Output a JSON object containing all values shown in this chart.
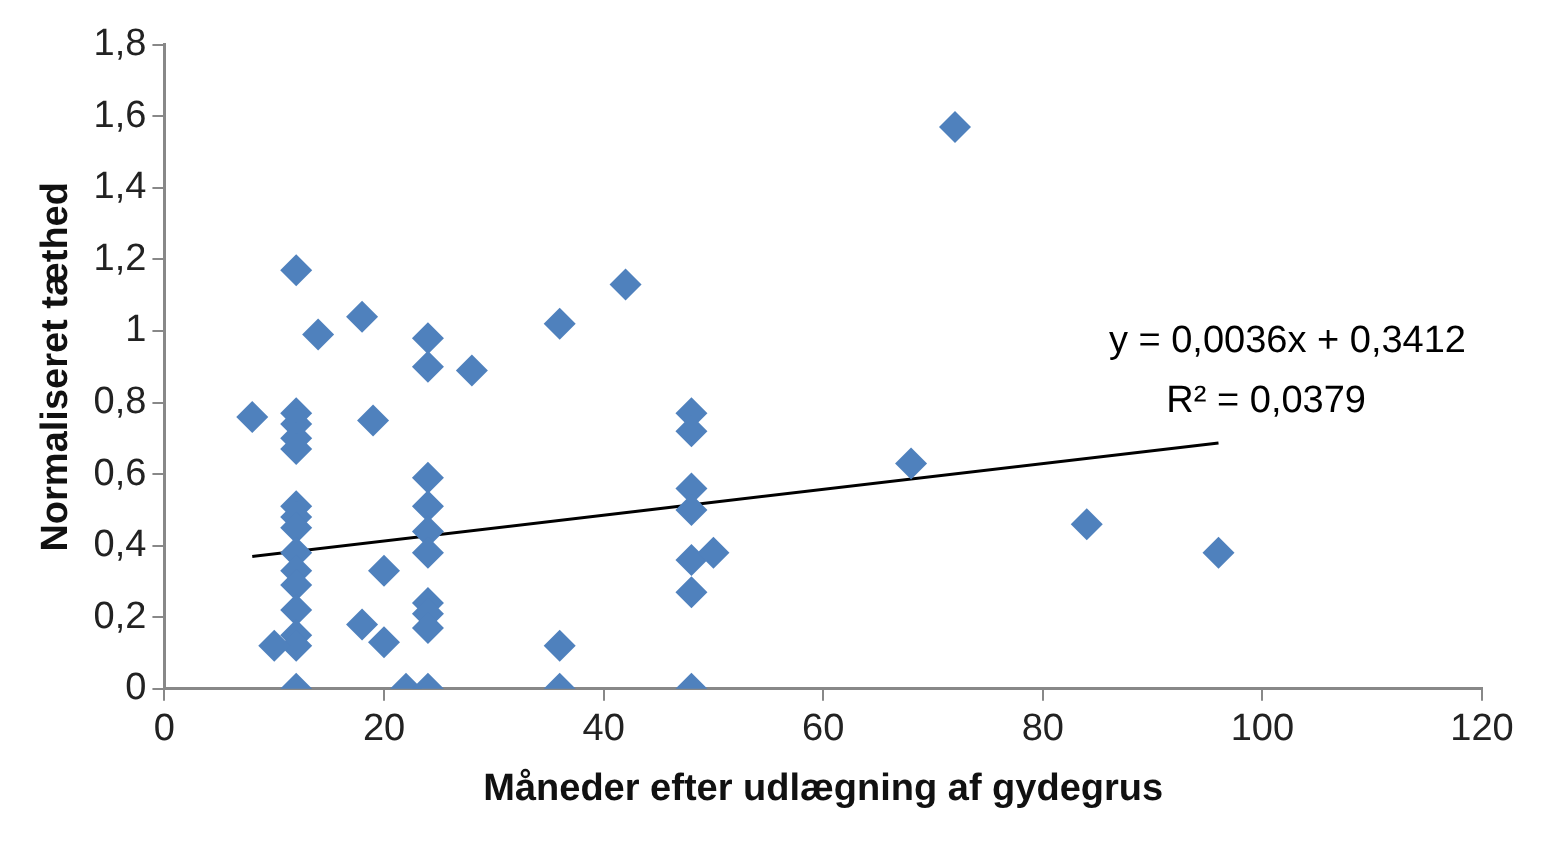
{
  "chart_data": {
    "type": "scatter",
    "xlabel": "Måneder efter udlægning af gydegrus",
    "ylabel": "Normaliseret tæthed",
    "marker": "diamond",
    "grid": false,
    "legend": false,
    "xlim": [
      0,
      120
    ],
    "xticks": [
      0,
      20,
      40,
      60,
      80,
      100,
      120
    ],
    "ylim": [
      0,
      1.8
    ],
    "yticks": [
      0,
      {
        "value": 0.2,
        "label": "0,2"
      },
      {
        "value": 0.4,
        "label": "0,4"
      },
      {
        "value": 0.6,
        "label": "0,6"
      },
      {
        "value": 0.8,
        "label": "0,8"
      },
      1,
      {
        "value": 1.2,
        "label": "1,2"
      },
      {
        "value": 1.4,
        "label": "1,4"
      },
      {
        "value": 1.6,
        "label": "1,6"
      },
      {
        "value": 1.8,
        "label": "1,8"
      }
    ],
    "annotations": [
      "y = 0,0036x + 0,3412",
      "R² = 0,0379"
    ],
    "series": [
      {
        "color": "#4f81bd",
        "x": [
          12,
          12,
          12,
          12,
          12,
          12,
          12,
          12,
          12,
          12,
          12,
          12,
          12,
          12,
          12,
          8,
          10,
          14,
          18,
          18,
          19,
          20,
          20,
          22,
          24,
          24,
          24,
          24,
          24,
          24,
          24,
          24,
          24,
          24,
          28,
          36,
          36,
          36,
          42,
          48,
          48,
          48,
          48,
          48,
          48,
          48,
          50,
          68,
          72,
          84,
          96
        ],
        "values": [
          1.17,
          0.77,
          0.74,
          0.7,
          0.67,
          0.51,
          0.48,
          0.45,
          0.38,
          0.33,
          0.29,
          0.22,
          0.15,
          0.12,
          0,
          0.76,
          0.12,
          0.99,
          1.04,
          0.18,
          0.75,
          0.33,
          0.13,
          0,
          0.98,
          0.9,
          0.59,
          0.51,
          0.44,
          0.38,
          0.24,
          0.21,
          0.17,
          0,
          0.89,
          1.02,
          0.12,
          0,
          1.13,
          0.77,
          0.72,
          0.56,
          0.5,
          0.36,
          0.27,
          0,
          0.38,
          0.63,
          1.57,
          0.46,
          0.38
        ]
      },
      {
        "type": "line",
        "color": "#000000",
        "marker": "none",
        "x": [
          8,
          96
        ],
        "values": [
          0.37,
          0.687
        ]
      }
    ]
  }
}
